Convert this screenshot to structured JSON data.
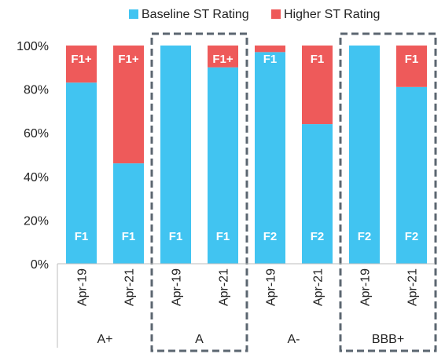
{
  "chart_data": {
    "type": "bar",
    "stacked": true,
    "normalized_percent": true,
    "title": "",
    "xlabel": "",
    "ylabel": "",
    "ylim": [
      0,
      100
    ],
    "y_ticks": [
      "0%",
      "20%",
      "40%",
      "60%",
      "80%",
      "100%"
    ],
    "legend_position": "top",
    "colors": {
      "baseline": "#41C4F1",
      "higher": "#EE5A5A",
      "box": "#5B6670"
    },
    "series": [
      {
        "name": "Baseline ST Rating",
        "color": "#41C4F1"
      },
      {
        "name": "Higher ST Rating",
        "color": "#EE5A5A"
      }
    ],
    "groups": [
      {
        "label": "A+",
        "boxed": false,
        "bars": [
          {
            "category": "Apr-19",
            "baseline": 83,
            "higher": 17,
            "baseline_label": "F1",
            "higher_label": "F1+"
          },
          {
            "category": "Apr-21",
            "baseline": 46,
            "higher": 54,
            "baseline_label": "F1",
            "higher_label": "F1+"
          }
        ]
      },
      {
        "label": "A",
        "boxed": true,
        "bars": [
          {
            "category": "Apr-19",
            "baseline": 100,
            "higher": 0,
            "baseline_label": "F1",
            "higher_label": ""
          },
          {
            "category": "Apr-21",
            "baseline": 90,
            "higher": 10,
            "baseline_label": "F1",
            "higher_label": "F1+"
          }
        ]
      },
      {
        "label": "A-",
        "boxed": false,
        "bars": [
          {
            "category": "Apr-19",
            "baseline": 97,
            "higher": 3,
            "baseline_label": "F2",
            "higher_label": "F1"
          },
          {
            "category": "Apr-21",
            "baseline": 64,
            "higher": 36,
            "baseline_label": "F2",
            "higher_label": "F1"
          }
        ]
      },
      {
        "label": "BBB+",
        "boxed": true,
        "bars": [
          {
            "category": "Apr-19",
            "baseline": 100,
            "higher": 0,
            "baseline_label": "F2",
            "higher_label": ""
          },
          {
            "category": "Apr-21",
            "baseline": 81,
            "higher": 19,
            "baseline_label": "F2",
            "higher_label": "F1"
          }
        ]
      }
    ]
  }
}
